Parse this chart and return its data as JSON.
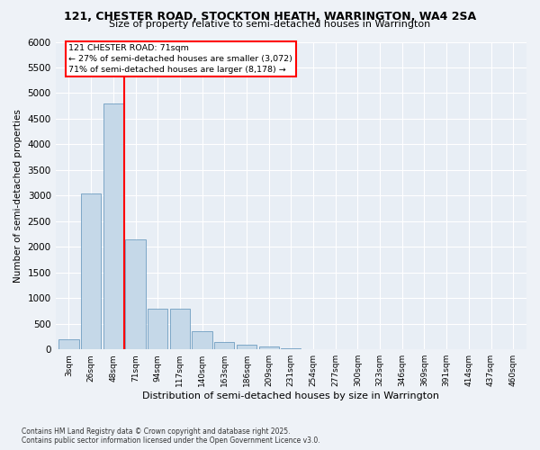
{
  "title": "121, CHESTER ROAD, STOCKTON HEATH, WARRINGTON, WA4 2SA",
  "subtitle": "Size of property relative to semi-detached houses in Warrington",
  "xlabel": "Distribution of semi-detached houses by size in Warrington",
  "ylabel": "Number of semi-detached properties",
  "footer1": "Contains HM Land Registry data © Crown copyright and database right 2025.",
  "footer2": "Contains public sector information licensed under the Open Government Licence v3.0.",
  "property_label": "121 CHESTER ROAD: 71sqm",
  "annotation_left": "← 27% of semi-detached houses are smaller (3,072)",
  "annotation_right": "71% of semi-detached houses are larger (8,178) →",
  "property_size": 71,
  "bin_labels": [
    "3sqm",
    "26sqm",
    "48sqm",
    "71sqm",
    "94sqm",
    "117sqm",
    "140sqm",
    "163sqm",
    "186sqm",
    "209sqm",
    "231sqm",
    "254sqm",
    "277sqm",
    "300sqm",
    "323sqm",
    "346sqm",
    "369sqm",
    "391sqm",
    "414sqm",
    "437sqm",
    "460sqm"
  ],
  "bar_values": [
    200,
    3050,
    4800,
    2150,
    800,
    800,
    350,
    150,
    100,
    50,
    20,
    10,
    5,
    3,
    2,
    1,
    1,
    0,
    0,
    0,
    0
  ],
  "bar_color": "#c5d8e8",
  "bar_edge_color": "#5a90b8",
  "vline_color": "red",
  "vline_x_index": 3,
  "ylim": [
    0,
    6000
  ],
  "yticks": [
    0,
    500,
    1000,
    1500,
    2000,
    2500,
    3000,
    3500,
    4000,
    4500,
    5000,
    5500,
    6000
  ],
  "bg_color": "#eef2f7",
  "plot_bg_color": "#e8eef5"
}
